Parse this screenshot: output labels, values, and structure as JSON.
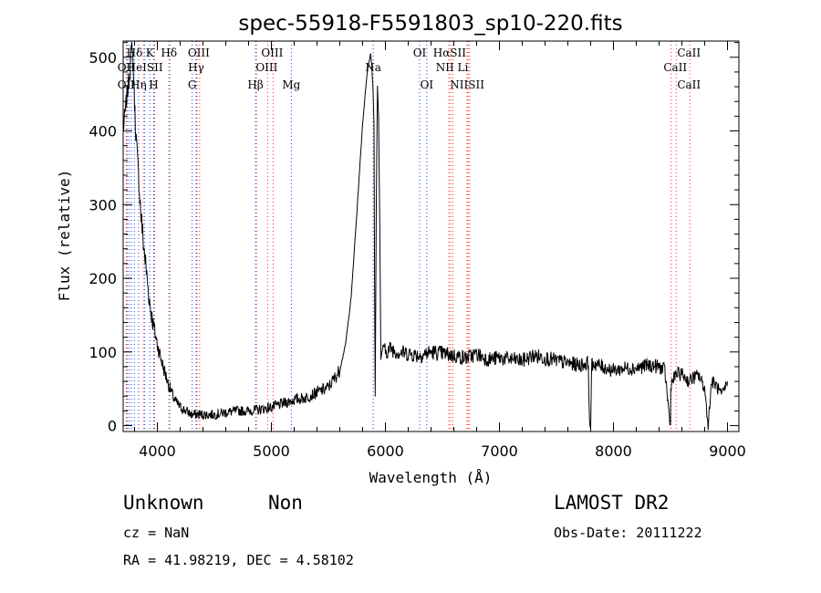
{
  "chart_data": {
    "type": "line",
    "title": "spec-55918-F5591803_sp10-220.fits",
    "xlabel": "Wavelength (Å)",
    "ylabel": "Flux (relative)",
    "xlim": [
      3700,
      9100
    ],
    "ylim": [
      -8,
      522
    ],
    "xticks": [
      4000,
      5000,
      6000,
      7000,
      8000,
      9000
    ],
    "yticks": [
      0,
      100,
      200,
      300,
      400,
      500
    ],
    "grid": false,
    "series": [
      {
        "x": [
          3700,
          3750,
          3780,
          3800,
          3810,
          3830,
          3850,
          3870,
          3900,
          3930,
          3960,
          4000,
          4050,
          4100,
          4150,
          4200,
          4300,
          4400,
          4500,
          4600,
          4700,
          4800,
          4900,
          5000,
          5100,
          5200,
          5300,
          5400,
          5500,
          5600,
          5650,
          5700,
          5750,
          5800,
          5840,
          5870,
          5880,
          5890,
          5900,
          5905,
          5910,
          5920,
          5930,
          5940,
          5950,
          5960,
          5970,
          5980,
          6000,
          6050,
          6100,
          6200,
          6300,
          6400,
          6500,
          6600,
          6700,
          6800,
          6900,
          7000,
          7100,
          7200,
          7300,
          7400,
          7500,
          7600,
          7700,
          7780,
          7790,
          7800,
          7810,
          7820,
          7900,
          8000,
          8100,
          8200,
          8300,
          8400,
          8450,
          8498,
          8500,
          8502,
          8550,
          8600,
          8660,
          8700,
          8750,
          8800,
          8830,
          8860,
          8900,
          8950,
          9000
        ],
        "y": [
          400,
          470,
          520,
          440,
          400,
          350,
          300,
          260,
          215,
          170,
          140,
          110,
          80,
          55,
          35,
          25,
          15,
          15,
          15,
          18,
          20,
          20,
          22,
          25,
          30,
          35,
          38,
          45,
          52,
          75,
          110,
          175,
          290,
          410,
          480,
          505,
          490,
          460,
          410,
          200,
          40,
          300,
          460,
          420,
          280,
          90,
          100,
          110,
          100,
          105,
          100,
          98,
          95,
          100,
          98,
          95,
          92,
          97,
          90,
          92,
          90,
          88,
          95,
          92,
          88,
          85,
          82,
          85,
          0,
          0,
          82,
          85,
          80,
          75,
          78,
          78,
          82,
          80,
          75,
          0,
          0,
          55,
          70,
          70,
          60,
          65,
          68,
          50,
          0,
          60,
          55,
          40,
          60
        ]
      }
    ],
    "annotations": [
      {
        "text": "Hδ",
        "x": 3800,
        "row": 1
      },
      {
        "text": "K",
        "x": 3934,
        "row": 1
      },
      {
        "text": "Hδ",
        "x": 4102,
        "row": 1
      },
      {
        "text": "OIII",
        "x": 4363,
        "row": 1
      },
      {
        "text": "OIII",
        "x": 5007,
        "row": 1
      },
      {
        "text": "OI",
        "x": 6300,
        "row": 1
      },
      {
        "text": "HαSII",
        "x": 6563,
        "row": 1
      },
      {
        "text": "CaII",
        "x": 8662,
        "row": 1
      },
      {
        "text": "OII",
        "x": 3727,
        "row": 2
      },
      {
        "text": "HeISII",
        "x": 3889,
        "row": 2
      },
      {
        "text": "Hγ",
        "x": 4340,
        "row": 2
      },
      {
        "text": "OIII",
        "x": 4959,
        "row": 2
      },
      {
        "text": "Na",
        "x": 5893,
        "row": 2
      },
      {
        "text": "NII Li",
        "x": 6584,
        "row": 2
      },
      {
        "text": "CaII",
        "x": 8542,
        "row": 2
      },
      {
        "text": "OII",
        "x": 3727,
        "row": 3
      },
      {
        "text": "Hη",
        "x": 3835,
        "row": 3
      },
      {
        "text": "H",
        "x": 3968,
        "row": 3
      },
      {
        "text": "G",
        "x": 4305,
        "row": 3
      },
      {
        "text": "Hβ",
        "x": 4861,
        "row": 3
      },
      {
        "text": "Mg",
        "x": 5175,
        "row": 3
      },
      {
        "text": "OI",
        "x": 6363,
        "row": 3
      },
      {
        "text": "NIISII",
        "x": 6717,
        "row": 3
      },
      {
        "text": "CaII",
        "x": 8662,
        "row": 3
      }
    ],
    "marker_lines": {
      "blue": [
        3727,
        3750,
        3771,
        3798,
        3835,
        3889,
        3934,
        3968,
        4102,
        4305,
        4340,
        4861,
        5175,
        5893,
        6300,
        6363
      ],
      "red": [
        3727,
        3869,
        3968,
        4102,
        4340,
        4363,
        4861,
        4959,
        5007,
        6548,
        6563,
        6584,
        6708,
        6717,
        6731,
        8498,
        8542,
        8662
      ]
    }
  },
  "footer": {
    "class_label": "Unknown",
    "subclass_label": "Non",
    "survey": "LAMOST DR2",
    "redshift": "cz = NaN",
    "obs_date": "Obs-Date: 20111222",
    "coords": "RA =  41.98219, DEC =   4.58102"
  }
}
